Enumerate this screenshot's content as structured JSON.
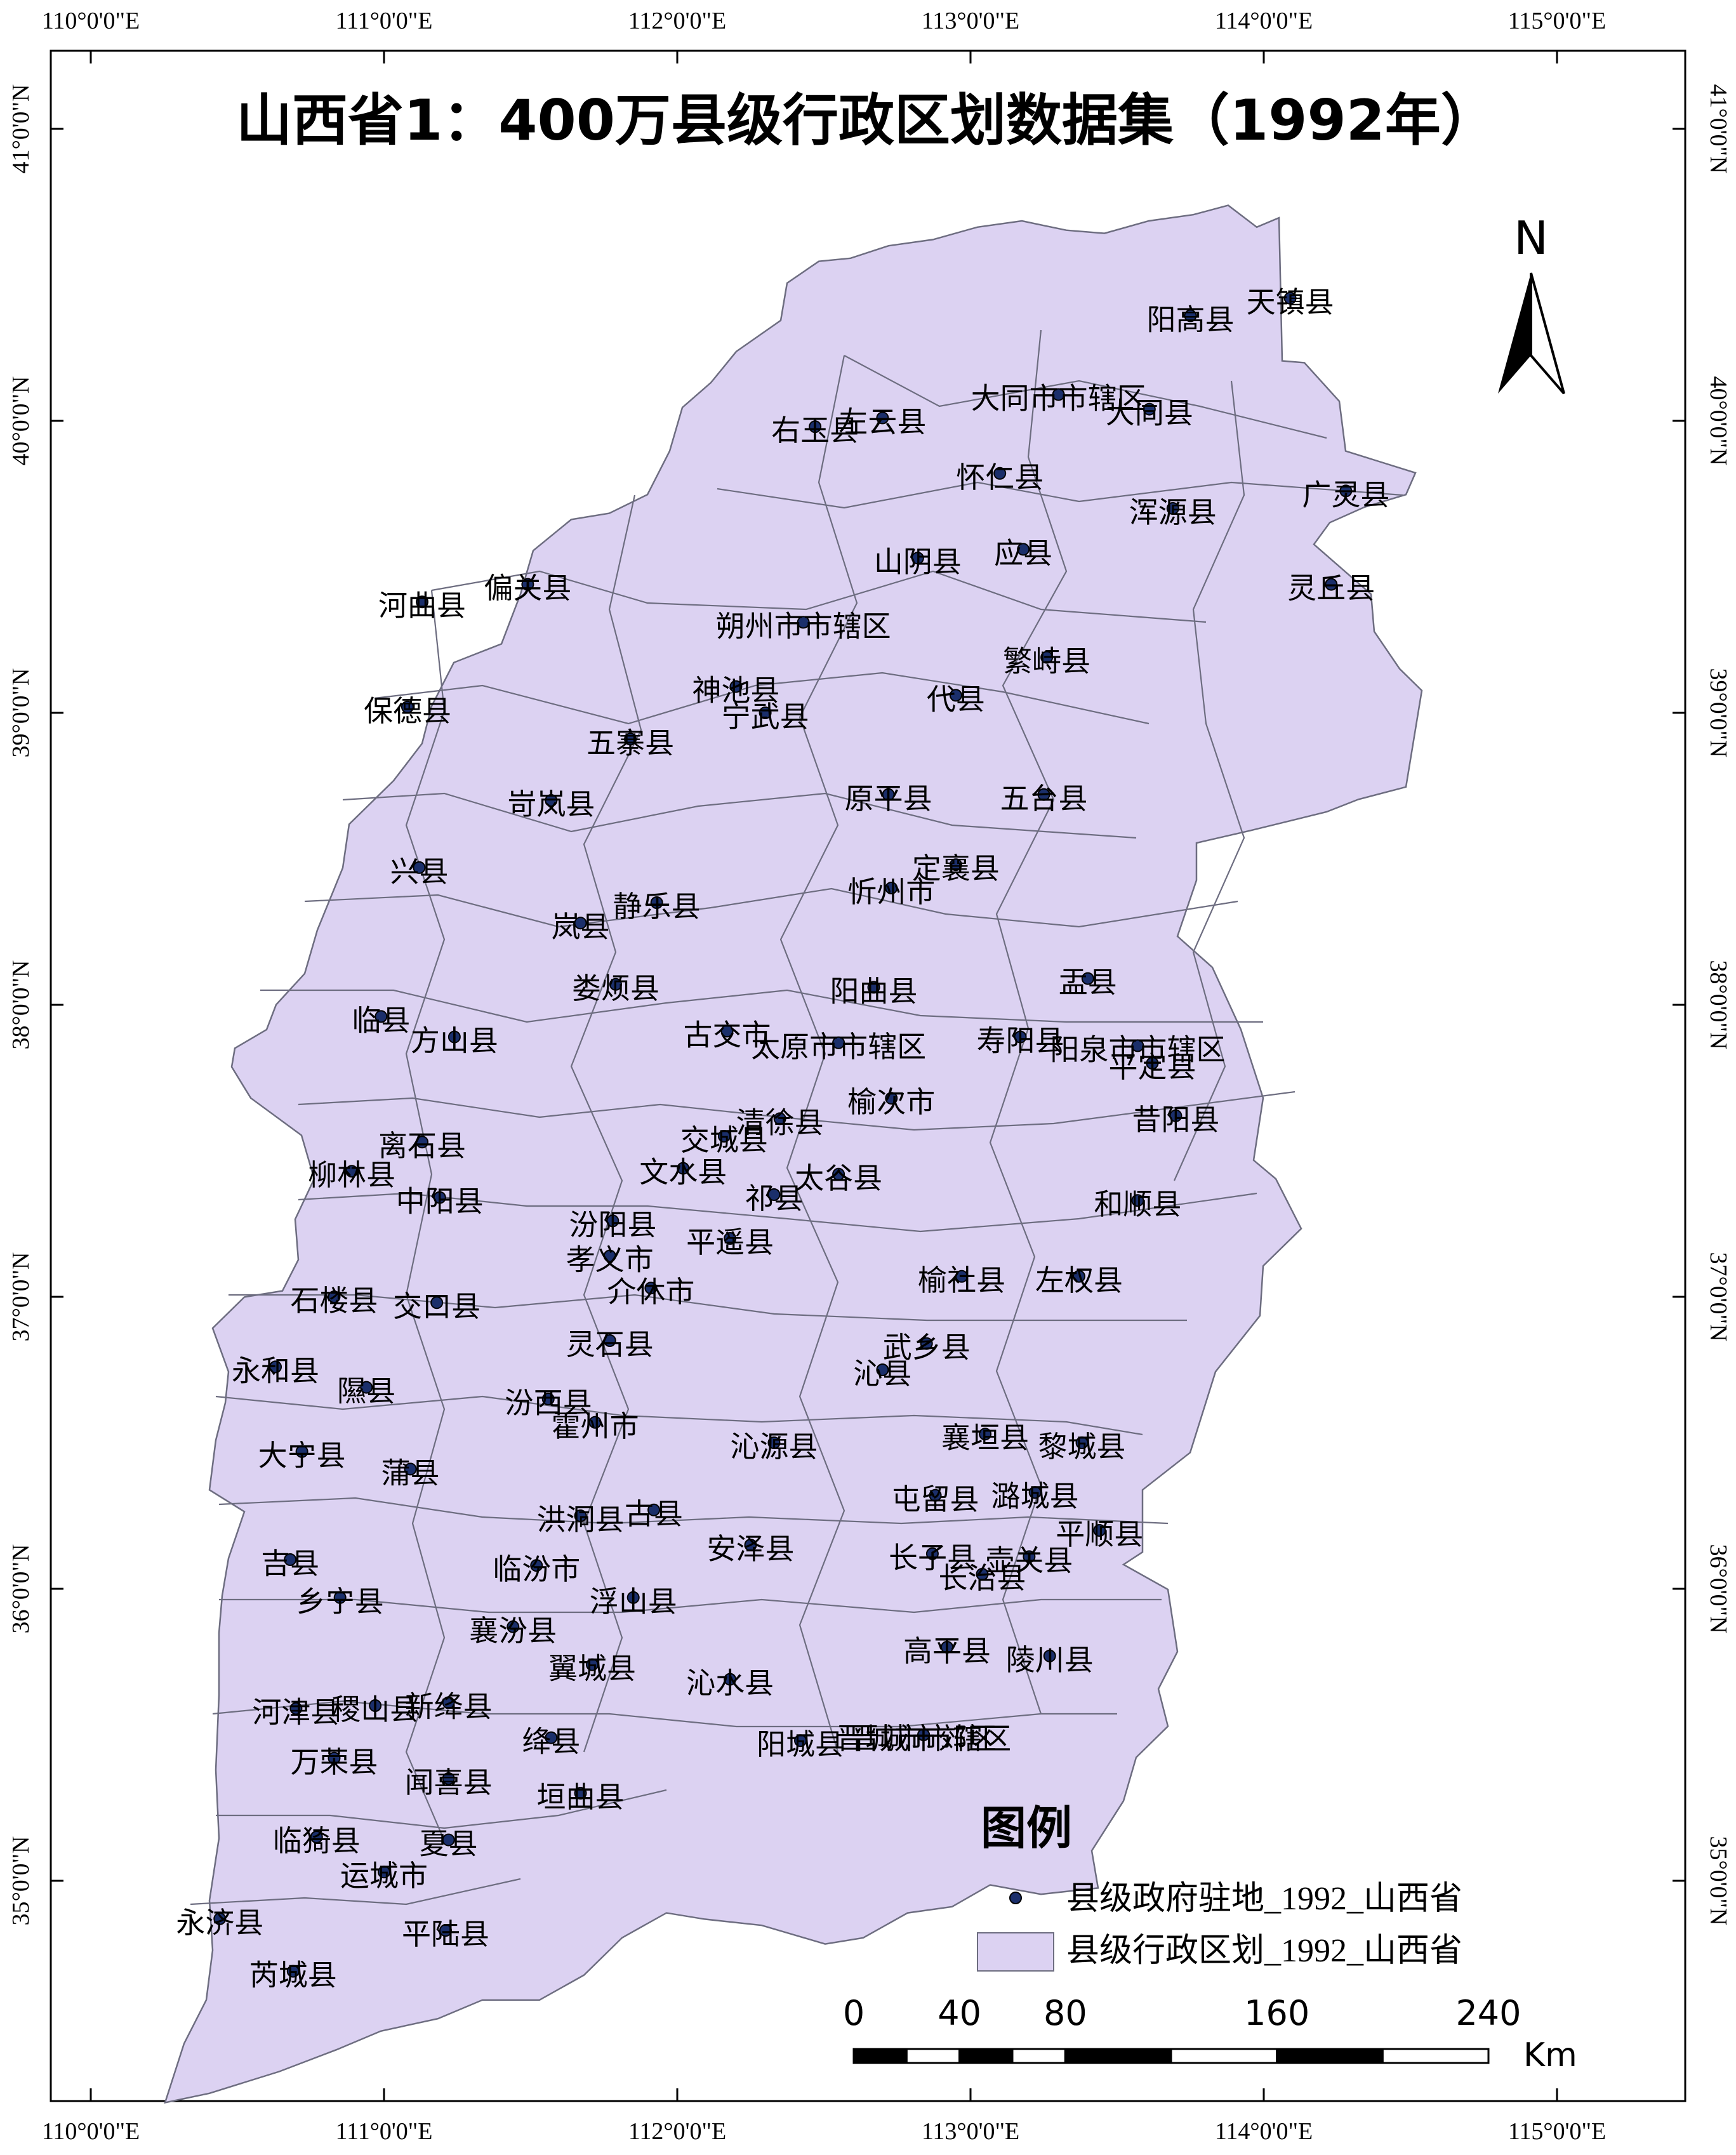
{
  "title": "山西省1：400万县级行政区划数据集（1992年）",
  "north_arrow": {
    "label": "N"
  },
  "legend": {
    "title": "图例",
    "items": [
      {
        "label": "县级政府驻地_1992_山西省",
        "symbol": "point",
        "color": "#1b2f6b"
      },
      {
        "label": "县级行政区划_1992_山西省",
        "symbol": "polygon",
        "color": "#dcd2f2"
      }
    ]
  },
  "scale_bar": {
    "unit": "Km",
    "ticks": [
      {
        "label": "0",
        "km": 0
      },
      {
        "label": "40",
        "km": 40
      },
      {
        "label": "80",
        "km": 80
      },
      {
        "label": "160",
        "km": 160
      },
      {
        "label": "240",
        "km": 240
      }
    ],
    "segments_km": [
      0,
      20,
      40,
      60,
      80,
      120,
      160,
      200,
      240
    ]
  },
  "graticule": {
    "lon_labels": [
      "110°0'0\"E",
      "111°0'0\"E",
      "112°0'0\"E",
      "113°0'0\"E",
      "114°0'0\"E",
      "115°0'0\"E"
    ],
    "lon_values": [
      110,
      111,
      112,
      113,
      114,
      115
    ],
    "lat_labels": [
      "41°0'0\"N",
      "40°0'0\"N",
      "39°0'0\"N",
      "38°0'0\"N",
      "37°0'0\"N",
      "36°0'0\"N",
      "35°0'0\"N"
    ],
    "lat_values": [
      41,
      40,
      39,
      38,
      37,
      36,
      35
    ]
  },
  "colors": {
    "province_fill": "#dcd2f2",
    "boundary": "#6d6d80",
    "seat": "#1b2f6b"
  },
  "counties": [
    {
      "name": "天镇县",
      "lon": 114.09,
      "lat": 40.42
    },
    {
      "name": "阳高县",
      "lon": 113.75,
      "lat": 40.36
    },
    {
      "name": "大同市市辖区",
      "lon": 113.3,
      "lat": 40.09
    },
    {
      "name": "右玉县",
      "lon": 112.47,
      "lat": 39.98
    },
    {
      "name": "左云县",
      "lon": 112.7,
      "lat": 40.01
    },
    {
      "name": "大同县",
      "lon": 113.61,
      "lat": 40.04
    },
    {
      "name": "怀仁县",
      "lon": 113.1,
      "lat": 39.82
    },
    {
      "name": "广灵县",
      "lon": 114.28,
      "lat": 39.76
    },
    {
      "name": "浑源县",
      "lon": 113.69,
      "lat": 39.7
    },
    {
      "name": "山阴县",
      "lon": 112.82,
      "lat": 39.53
    },
    {
      "name": "应县",
      "lon": 113.18,
      "lat": 39.56
    },
    {
      "name": "偏关县",
      "lon": 111.49,
      "lat": 39.44
    },
    {
      "name": "朔州市市辖区",
      "lon": 112.43,
      "lat": 39.31
    },
    {
      "name": "灵丘县",
      "lon": 114.23,
      "lat": 39.44
    },
    {
      "name": "河曲县",
      "lon": 111.13,
      "lat": 39.38
    },
    {
      "name": "神池县",
      "lon": 112.2,
      "lat": 39.09
    },
    {
      "name": "繁峙县",
      "lon": 113.26,
      "lat": 39.19
    },
    {
      "name": "代县",
      "lon": 112.95,
      "lat": 39.06
    },
    {
      "name": "五寨县",
      "lon": 111.84,
      "lat": 38.91
    },
    {
      "name": "保德县",
      "lon": 111.08,
      "lat": 39.02
    },
    {
      "name": "宁武县",
      "lon": 112.3,
      "lat": 39.0
    },
    {
      "name": "原平县",
      "lon": 112.72,
      "lat": 38.72
    },
    {
      "name": "五台县",
      "lon": 113.25,
      "lat": 38.72
    },
    {
      "name": "岢岚县",
      "lon": 111.57,
      "lat": 38.7
    },
    {
      "name": "兴县",
      "lon": 111.12,
      "lat": 38.47
    },
    {
      "name": "定襄县",
      "lon": 112.95,
      "lat": 38.48
    },
    {
      "name": "岚县",
      "lon": 111.67,
      "lat": 38.28
    },
    {
      "name": "静乐县",
      "lon": 111.93,
      "lat": 38.35
    },
    {
      "name": "忻州市",
      "lon": 112.73,
      "lat": 38.4
    },
    {
      "name": "盂县",
      "lon": 113.4,
      "lat": 38.09
    },
    {
      "name": "阳曲县",
      "lon": 112.67,
      "lat": 38.06
    },
    {
      "name": "娄烦县",
      "lon": 111.79,
      "lat": 38.07
    },
    {
      "name": "阳泉市市辖区",
      "lon": 113.57,
      "lat": 37.86
    },
    {
      "name": "临县",
      "lon": 110.99,
      "lat": 37.96
    },
    {
      "name": "方山县",
      "lon": 111.24,
      "lat": 37.89
    },
    {
      "name": "古交市",
      "lon": 112.17,
      "lat": 37.91
    },
    {
      "name": "太原市市辖区",
      "lon": 112.55,
      "lat": 37.87
    },
    {
      "name": "寿阳县",
      "lon": 113.17,
      "lat": 37.89
    },
    {
      "name": "平定县",
      "lon": 113.62,
      "lat": 37.8
    },
    {
      "name": "交城县",
      "lon": 112.16,
      "lat": 37.55
    },
    {
      "name": "榆次市",
      "lon": 112.73,
      "lat": 37.68
    },
    {
      "name": "离石县",
      "lon": 111.13,
      "lat": 37.53
    },
    {
      "name": "文水县",
      "lon": 112.02,
      "lat": 37.44
    },
    {
      "name": "清徐县",
      "lon": 112.35,
      "lat": 37.61
    },
    {
      "name": "昔阳县",
      "lon": 113.7,
      "lat": 37.62
    },
    {
      "name": "柳林县",
      "lon": 110.89,
      "lat": 37.43
    },
    {
      "name": "太谷县",
      "lon": 112.55,
      "lat": 37.42
    },
    {
      "name": "汾阳县",
      "lon": 111.78,
      "lat": 37.26
    },
    {
      "name": "中阳县",
      "lon": 111.19,
      "lat": 37.34
    },
    {
      "name": "祁县",
      "lon": 112.33,
      "lat": 37.35
    },
    {
      "name": "和顺县",
      "lon": 113.57,
      "lat": 37.33
    },
    {
      "name": "平遥县",
      "lon": 112.18,
      "lat": 37.2
    },
    {
      "name": "孝义市",
      "lon": 111.77,
      "lat": 37.14
    },
    {
      "name": "介休市",
      "lon": 111.91,
      "lat": 37.03
    },
    {
      "name": "榆社县",
      "lon": 112.97,
      "lat": 37.07
    },
    {
      "name": "左权县",
      "lon": 113.37,
      "lat": 37.07
    },
    {
      "name": "石楼县",
      "lon": 110.83,
      "lat": 37.0
    },
    {
      "name": "交口县",
      "lon": 111.18,
      "lat": 36.98
    },
    {
      "name": "灵石县",
      "lon": 111.77,
      "lat": 36.85
    },
    {
      "name": "武乡县",
      "lon": 112.85,
      "lat": 36.84
    },
    {
      "name": "永和县",
      "lon": 110.63,
      "lat": 36.76
    },
    {
      "name": "隰县",
      "lon": 110.94,
      "lat": 36.69
    },
    {
      "name": "汾西县",
      "lon": 111.56,
      "lat": 36.65
    },
    {
      "name": "霍州市",
      "lon": 111.72,
      "lat": 36.57
    },
    {
      "name": "沁源县",
      "lon": 112.33,
      "lat": 36.5
    },
    {
      "name": "沁县",
      "lon": 112.7,
      "lat": 36.75
    },
    {
      "name": "黎城县",
      "lon": 113.38,
      "lat": 36.5
    },
    {
      "name": "襄垣县",
      "lon": 113.05,
      "lat": 36.53
    },
    {
      "name": "大宁县",
      "lon": 110.72,
      "lat": 36.47
    },
    {
      "name": "蒲县",
      "lon": 111.09,
      "lat": 36.41
    },
    {
      "name": "洪洞县",
      "lon": 111.67,
      "lat": 36.25
    },
    {
      "name": "屯留县",
      "lon": 112.88,
      "lat": 36.32
    },
    {
      "name": "潞城县",
      "lon": 113.22,
      "lat": 36.33
    },
    {
      "name": "古县",
      "lon": 111.92,
      "lat": 36.27
    },
    {
      "name": "平顺县",
      "lon": 113.44,
      "lat": 36.2
    },
    {
      "name": "吉县",
      "lon": 110.68,
      "lat": 36.1
    },
    {
      "name": "临汾市",
      "lon": 111.52,
      "lat": 36.08
    },
    {
      "name": "安泽县",
      "lon": 112.25,
      "lat": 36.15
    },
    {
      "name": "长子县",
      "lon": 112.87,
      "lat": 36.12
    },
    {
      "name": "壶关县",
      "lon": 113.2,
      "lat": 36.11
    },
    {
      "name": "长治县",
      "lon": 113.04,
      "lat": 36.05
    },
    {
      "name": "乡宁县",
      "lon": 110.85,
      "lat": 35.97
    },
    {
      "name": "浮山县",
      "lon": 111.85,
      "lat": 35.97
    },
    {
      "name": "襄汾县",
      "lon": 111.44,
      "lat": 35.87
    },
    {
      "name": "高平县",
      "lon": 112.92,
      "lat": 35.8
    },
    {
      "name": "陵川县",
      "lon": 113.27,
      "lat": 35.77
    },
    {
      "name": "翼城县",
      "lon": 111.71,
      "lat": 35.74
    },
    {
      "name": "沁水县",
      "lon": 112.18,
      "lat": 35.69
    },
    {
      "name": "河津县",
      "lon": 110.7,
      "lat": 35.59
    },
    {
      "name": "稷山县",
      "lon": 110.97,
      "lat": 35.6
    },
    {
      "name": "新绛县",
      "lon": 111.22,
      "lat": 35.61
    },
    {
      "name": "绛县",
      "lon": 111.57,
      "lat": 35.49
    },
    {
      "name": "晋城市市辖区",
      "lon": 112.84,
      "lat": 35.5
    },
    {
      "name": "阳城县",
      "lon": 112.42,
      "lat": 35.48
    },
    {
      "name": "晋城市郊区",
      "lon": 112.84,
      "lat": 35.5
    },
    {
      "name": "万荣县",
      "lon": 110.83,
      "lat": 35.42
    },
    {
      "name": "闻喜县",
      "lon": 111.22,
      "lat": 35.35
    },
    {
      "name": "垣曲县",
      "lon": 111.67,
      "lat": 35.3
    },
    {
      "name": "临猗县",
      "lon": 110.77,
      "lat": 35.15
    },
    {
      "name": "夏县",
      "lon": 111.22,
      "lat": 35.14
    },
    {
      "name": "运城市",
      "lon": 111.0,
      "lat": 35.03
    },
    {
      "name": "永济县",
      "lon": 110.44,
      "lat": 34.87
    },
    {
      "name": "平陆县",
      "lon": 111.21,
      "lat": 34.83
    },
    {
      "name": "芮城县",
      "lon": 110.69,
      "lat": 34.69
    }
  ]
}
